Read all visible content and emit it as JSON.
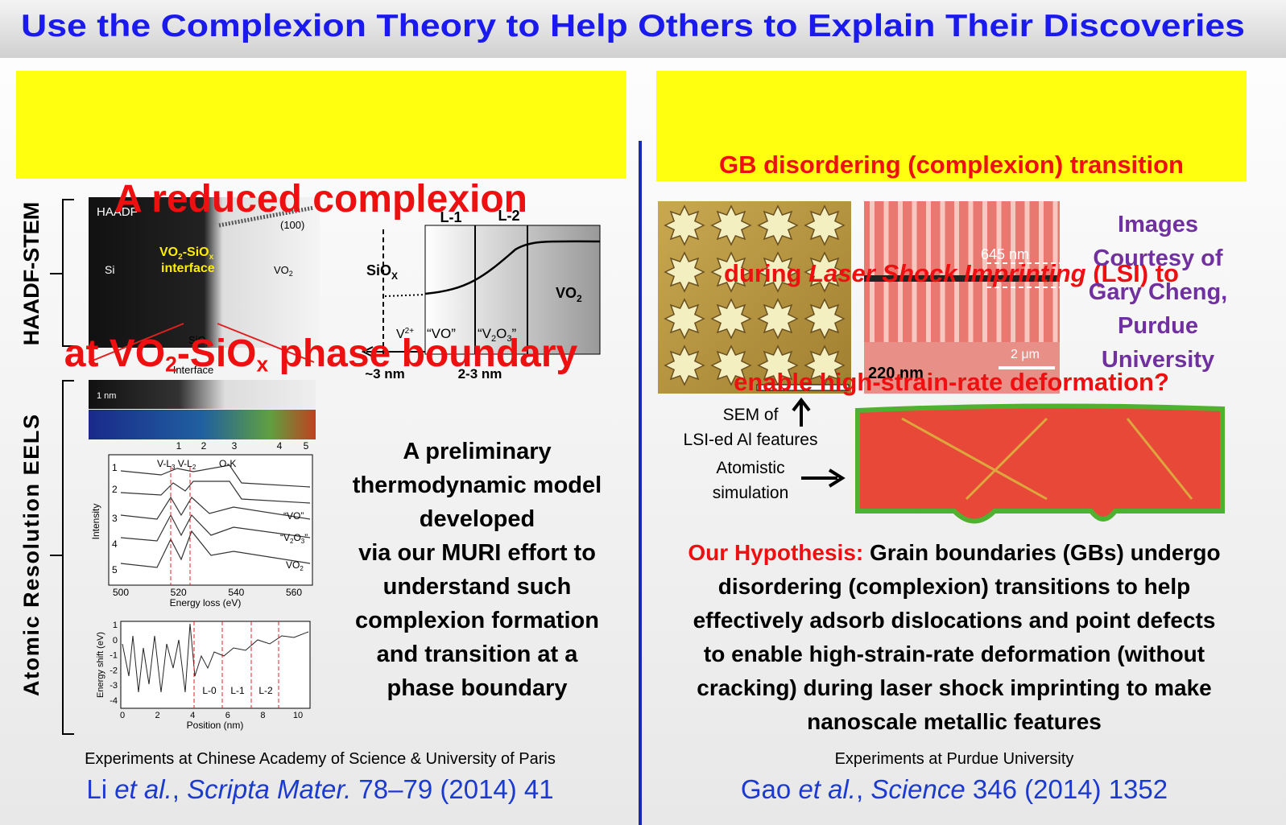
{
  "title": "Use the Complexion Theory to Help Others to Explain Their Discoveries",
  "left": {
    "heading": {
      "line1": "A reduced complexion",
      "line2": [
        "at VO",
        "2",
        "-SiO",
        "x",
        " phase boundary"
      ]
    },
    "side_labels": {
      "haadf_stem": "HAADF-STEM",
      "eels": "Atomic Resolution EELS"
    },
    "haadf_image": {
      "label": "HAADF",
      "si": "Si",
      "interface": [
        "VO",
        "2",
        "-SiO",
        "x"
      ],
      "interface_word": "interface",
      "vo2": [
        "VO",
        "2"
      ],
      "plane": "(100)",
      "siox": [
        "SiO",
        "x"
      ],
      "below": "Interface"
    },
    "eels_strip": {
      "scale": "1 nm",
      "points": [
        1,
        2,
        3,
        4,
        5
      ]
    },
    "spectra": {
      "edges": [
        "V-L",
        "3",
        " V-L",
        "2",
        "O-K"
      ],
      "y_label": "Intensity",
      "x_label": "Energy loss (eV)",
      "xticks": [
        500,
        520,
        540,
        560
      ],
      "rows": [
        1,
        2,
        3,
        4,
        5
      ],
      "vo": "“VO”",
      "v2o3": [
        "“V",
        "2",
        "O",
        "3",
        "”"
      ],
      "vo2": [
        "VO",
        "2"
      ]
    },
    "shift_plot": {
      "y_label": "Energy shift (eV)",
      "x_label": "Position (nm)",
      "xticks": [
        0,
        2,
        4,
        6,
        8,
        10
      ],
      "yticks": [
        1,
        0,
        -1,
        -2,
        -3,
        -4
      ],
      "regions": [
        "L-0",
        "L-1",
        "L-2"
      ]
    },
    "schematic": {
      "l1": "L-1",
      "l2": "L-2",
      "siox": [
        "SiO",
        "X"
      ],
      "vo2": [
        "VO",
        "2"
      ],
      "v2plus": [
        "V",
        "2+"
      ],
      "vo": "“VO”",
      "v2o3": [
        "“V",
        "2",
        "O",
        "3",
        "”"
      ],
      "w1": "~3 nm",
      "w2": "2-3 nm"
    },
    "text": [
      "A preliminary",
      "thermodynamic model",
      "developed",
      "via our MURI effort to",
      "understand such",
      "complexion formation",
      "and transition at a",
      "phase boundary"
    ],
    "experiments": "Experiments at Chinese Academy of Science & University of Paris",
    "citation": [
      "Li ",
      "et al.",
      ", ",
      "Scripta Mater.",
      " 78–79 (2014) 41"
    ]
  },
  "right": {
    "heading": [
      "GB disordering (complexion) transition",
      [
        "during ",
        "Laser Shock Imprinting",
        " (LSI) to"
      ],
      "enable high-strain-rate deformation?"
    ],
    "red_image": {
      "h": "645 nm",
      "scale": "2 μm",
      "w": "220 nm"
    },
    "courtesy": [
      "Images",
      "Courtesy of",
      "Gary Cheng,",
      "Purdue",
      "University"
    ],
    "sem_label": [
      "SEM of",
      "LSI-ed Al features"
    ],
    "sim_label": [
      "Atomistic",
      "simulation"
    ],
    "hypothesis_label": "Our Hypothesis:",
    "hypothesis": [
      " Grain boundaries (GBs) undergo",
      "disordering (complexion) transitions to help",
      "effectively adsorb dislocations and point defects",
      "to enable high-strain-rate deformation (without",
      "cracking) during laser shock imprinting to make",
      "nanoscale metallic features"
    ],
    "experiments": "Experiments at Purdue University",
    "citation": [
      "Gao ",
      "et al.",
      ", ",
      "Science",
      " 346 (2014) 1352"
    ]
  }
}
